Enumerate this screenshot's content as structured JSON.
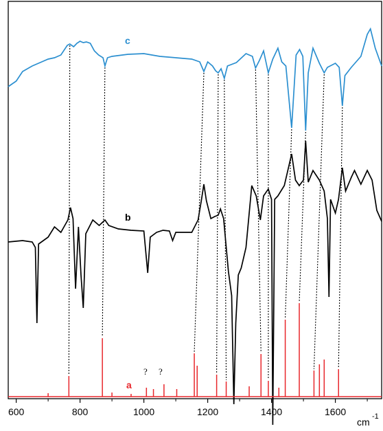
{
  "chart_data": {
    "type": "line",
    "title": "",
    "xlabel": "cm",
    "xlabel_superscript": "-1",
    "ylabel": "",
    "xlim": [
      575,
      1745
    ],
    "x_ticks": [
      600,
      800,
      1000,
      1200,
      1400,
      1600
    ],
    "x_tick_labels": [
      "600",
      "800",
      "1000",
      "1200",
      "1400",
      "1600"
    ],
    "grid": false,
    "legend": "none",
    "colors": {
      "c": "#2b8fd0",
      "b": "#000000",
      "a": "#e8262b",
      "connector": "#000000"
    },
    "series": [
      {
        "name": "c",
        "style": "line",
        "points": [
          [
            575,
            126
          ],
          [
            600,
            118
          ],
          [
            620,
            104
          ],
          [
            650,
            96
          ],
          [
            680,
            90
          ],
          [
            700,
            86
          ],
          [
            720,
            84
          ],
          [
            740,
            80
          ],
          [
            760,
            66
          ],
          [
            768,
            64
          ],
          [
            780,
            68
          ],
          [
            790,
            63
          ],
          [
            800,
            60
          ],
          [
            810,
            62
          ],
          [
            820,
            61
          ],
          [
            832,
            63
          ],
          [
            845,
            74
          ],
          [
            858,
            80
          ],
          [
            872,
            84
          ],
          [
            878,
            96
          ],
          [
            886,
            84
          ],
          [
            900,
            82
          ],
          [
            950,
            79
          ],
          [
            1000,
            78
          ],
          [
            1050,
            82
          ],
          [
            1100,
            84
          ],
          [
            1150,
            86
          ],
          [
            1175,
            90
          ],
          [
            1188,
            104
          ],
          [
            1200,
            90
          ],
          [
            1215,
            96
          ],
          [
            1225,
            103
          ],
          [
            1233,
            106
          ],
          [
            1242,
            100
          ],
          [
            1252,
            114
          ],
          [
            1262,
            96
          ],
          [
            1290,
            91
          ],
          [
            1320,
            78
          ],
          [
            1340,
            82
          ],
          [
            1350,
            99
          ],
          [
            1362,
            88
          ],
          [
            1375,
            74
          ],
          [
            1390,
            106
          ],
          [
            1404,
            86
          ],
          [
            1420,
            70
          ],
          [
            1432,
            90
          ],
          [
            1445,
            96
          ],
          [
            1463,
            186
          ],
          [
            1477,
            80
          ],
          [
            1488,
            72
          ],
          [
            1498,
            82
          ],
          [
            1507,
            190
          ],
          [
            1515,
            106
          ],
          [
            1530,
            70
          ],
          [
            1550,
            92
          ],
          [
            1565,
            106
          ],
          [
            1575,
            98
          ],
          [
            1600,
            92
          ],
          [
            1612,
            98
          ],
          [
            1622,
            154
          ],
          [
            1630,
            110
          ],
          [
            1650,
            98
          ],
          [
            1680,
            82
          ],
          [
            1700,
            50
          ],
          [
            1710,
            42
          ],
          [
            1725,
            70
          ],
          [
            1745,
            96
          ]
        ],
        "dips": [
          [
            768,
            64
          ],
          [
            878,
            96
          ],
          [
            1188,
            104
          ],
          [
            1233,
            106
          ],
          [
            1252,
            114
          ],
          [
            1350,
            99
          ],
          [
            1390,
            106
          ],
          [
            1463,
            186
          ],
          [
            1507,
            190
          ],
          [
            1565,
            106
          ],
          [
            1622,
            154
          ]
        ]
      },
      {
        "name": "b",
        "style": "line",
        "points": [
          [
            575,
            352
          ],
          [
            620,
            350
          ],
          [
            650,
            352
          ],
          [
            660,
            360
          ],
          [
            665,
            470
          ],
          [
            670,
            355
          ],
          [
            700,
            345
          ],
          [
            720,
            330
          ],
          [
            740,
            338
          ],
          [
            762,
            320
          ],
          [
            770,
            302
          ],
          [
            778,
            318
          ],
          [
            786,
            420
          ],
          [
            795,
            330
          ],
          [
            803,
            400
          ],
          [
            810,
            448
          ],
          [
            818,
            340
          ],
          [
            840,
            320
          ],
          [
            860,
            328
          ],
          [
            878,
            320
          ],
          [
            890,
            328
          ],
          [
            920,
            333
          ],
          [
            960,
            335
          ],
          [
            1000,
            336
          ],
          [
            1012,
            397
          ],
          [
            1020,
            345
          ],
          [
            1040,
            338
          ],
          [
            1060,
            335
          ],
          [
            1080,
            336
          ],
          [
            1090,
            350
          ],
          [
            1100,
            338
          ],
          [
            1150,
            338
          ],
          [
            1170,
            320
          ],
          [
            1180,
            292
          ],
          [
            1188,
            268
          ],
          [
            1196,
            292
          ],
          [
            1210,
            318
          ],
          [
            1222,
            315
          ],
          [
            1233,
            313
          ],
          [
            1240,
            304
          ],
          [
            1250,
            318
          ],
          [
            1258,
            360
          ],
          [
            1265,
            395
          ],
          [
            1275,
            430
          ],
          [
            1282,
            588
          ],
          [
            1288,
            470
          ],
          [
            1296,
            400
          ],
          [
            1305,
            390
          ],
          [
            1320,
            360
          ],
          [
            1338,
            270
          ],
          [
            1352,
            285
          ],
          [
            1365,
            320
          ],
          [
            1375,
            285
          ],
          [
            1390,
            275
          ],
          [
            1400,
            290
          ],
          [
            1404,
            618
          ],
          [
            1410,
            290
          ],
          [
            1420,
            285
          ],
          [
            1440,
            270
          ],
          [
            1455,
            240
          ],
          [
            1463,
            224
          ],
          [
            1475,
            262
          ],
          [
            1487,
            270
          ],
          [
            1500,
            262
          ],
          [
            1507,
            205
          ],
          [
            1515,
            265
          ],
          [
            1530,
            248
          ],
          [
            1550,
            262
          ],
          [
            1565,
            278
          ],
          [
            1575,
            318
          ],
          [
            1580,
            432
          ],
          [
            1585,
            290
          ],
          [
            1600,
            310
          ],
          [
            1610,
            290
          ],
          [
            1622,
            244
          ],
          [
            1632,
            278
          ],
          [
            1650,
            258
          ],
          [
            1660,
            248
          ],
          [
            1680,
            268
          ],
          [
            1700,
            248
          ],
          [
            1715,
            262
          ],
          [
            1730,
            306
          ],
          [
            1745,
            322
          ]
        ]
      },
      {
        "name": "a",
        "style": "stick",
        "baseline": 0,
        "peaks": [
          [
            700,
            5
          ],
          [
            765,
            30
          ],
          [
            870,
            85
          ],
          [
            900,
            6
          ],
          [
            960,
            4
          ],
          [
            1008,
            13
          ],
          [
            1030,
            11
          ],
          [
            1063,
            18
          ],
          [
            1103,
            11
          ],
          [
            1158,
            63
          ],
          [
            1167,
            45
          ],
          [
            1228,
            32
          ],
          [
            1258,
            22
          ],
          [
            1330,
            15
          ],
          [
            1367,
            62
          ],
          [
            1390,
            23
          ],
          [
            1423,
            13
          ],
          [
            1443,
            112
          ],
          [
            1487,
            136
          ],
          [
            1533,
            38
          ],
          [
            1550,
            47
          ],
          [
            1565,
            54
          ],
          [
            1610,
            40
          ]
        ],
        "annotations": [
          {
            "x": 1008,
            "text": "?"
          },
          {
            "x": 1063,
            "text": "?"
          }
        ]
      }
    ],
    "connectors": [
      {
        "from": [
          "c",
          768
        ],
        "to": [
          "a",
          765
        ]
      },
      {
        "from": [
          "c",
          878
        ],
        "to": [
          "a",
          870
        ]
      },
      {
        "from": [
          "c",
          1188
        ],
        "to": [
          "a",
          1158
        ]
      },
      {
        "from": [
          "c",
          1233
        ],
        "to": [
          "a",
          1228
        ]
      },
      {
        "from": [
          "c",
          1252
        ],
        "to": [
          "a",
          1258
        ]
      },
      {
        "from": [
          "c",
          1350
        ],
        "to": [
          "a",
          1367
        ]
      },
      {
        "from": [
          "c",
          1390
        ],
        "to": [
          "a",
          1390
        ]
      },
      {
        "from": [
          "c",
          1463
        ],
        "to": [
          "a",
          1443
        ]
      },
      {
        "from": [
          "c",
          1507
        ],
        "to": [
          "a",
          1487
        ]
      },
      {
        "from": [
          "c",
          1565
        ],
        "to": [
          "a",
          1533
        ]
      },
      {
        "from": [
          "c",
          1622
        ],
        "to": [
          "a",
          1610
        ]
      }
    ]
  }
}
